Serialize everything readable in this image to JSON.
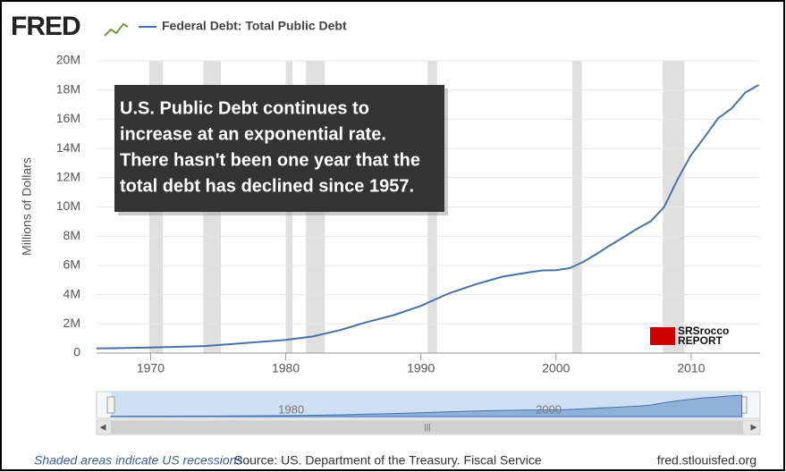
{
  "chart_data": {
    "type": "line",
    "logo": "FRED",
    "title": "Federal Debt: Total Public Debt",
    "y_label": "Millions of Dollars",
    "annotation": [
      "U.S. Public Debt continues to",
      "increase at an exponential rate.",
      "There hasn't been one year that the",
      "total debt has declined since 1957."
    ],
    "watermark": [
      "SRSrocco",
      "REPORT"
    ],
    "x": [
      1966,
      1970,
      1974,
      1976,
      1980,
      1982,
      1984,
      1986,
      1988,
      1990,
      1992,
      1994,
      1996,
      1998,
      1999,
      2000,
      2001,
      2002,
      2003,
      2004,
      2005,
      2006,
      2007,
      2008,
      2009,
      2010,
      2011,
      2012,
      2013,
      2014,
      2015
    ],
    "series": [
      {
        "name": "Federal Debt: Total Public Debt",
        "color": "#4572a7",
        "values": [
          320000,
          380000,
          480000,
          620000,
          900000,
          1140000,
          1570000,
          2120000,
          2600000,
          3230000,
          4060000,
          4690000,
          5220000,
          5530000,
          5660000,
          5670000,
          5810000,
          6230000,
          6780000,
          7380000,
          7930000,
          8510000,
          9010000,
          10000000,
          11900000,
          13560000,
          14790000,
          16070000,
          16740000,
          17820000,
          18350000
        ]
      }
    ],
    "recessions": [
      [
        1969.9,
        1970.9
      ],
      [
        1973.9,
        1975.2
      ],
      [
        1980.0,
        1980.5
      ],
      [
        1981.5,
        1982.9
      ],
      [
        1990.5,
        1991.2
      ],
      [
        2001.2,
        2001.9
      ],
      [
        2007.9,
        2009.5
      ]
    ],
    "xlim": [
      1966,
      2015.1
    ],
    "xticks": [
      1970,
      1980,
      1990,
      2000,
      2010
    ],
    "ylim": [
      0,
      20000000
    ],
    "yticks": [
      0,
      {
        "value": 2000000,
        "label": "2M"
      },
      {
        "value": 4000000,
        "label": "4M"
      },
      {
        "value": 6000000,
        "label": "6M"
      },
      {
        "value": 8000000,
        "label": "8M"
      },
      {
        "value": 10000000,
        "label": "10M"
      },
      {
        "value": 12000000,
        "label": "12M"
      },
      {
        "value": 14000000,
        "label": "14M"
      },
      {
        "value": 16000000,
        "label": "16M"
      },
      {
        "value": 18000000,
        "label": "18M"
      },
      {
        "value": 20000000,
        "label": "20M"
      }
    ],
    "grid": true,
    "navigator_ticks": [
      1980,
      2000
    ],
    "footer_note": "Shaded areas indicate US recessions",
    "source": "Source: US. Department of the Treasury. Fiscal Service",
    "site": "fred.stlouisfed.org"
  }
}
